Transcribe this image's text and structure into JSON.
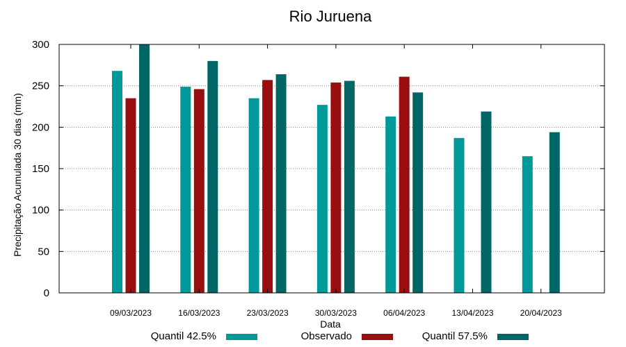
{
  "chart_data": {
    "type": "bar",
    "title": "Rio Juruena",
    "xlabel": "Data",
    "ylabel": "Precipitação Acumulada 30 dias (mm)",
    "ylim": [
      0,
      300
    ],
    "yticks": [
      0,
      50,
      100,
      150,
      200,
      250,
      300
    ],
    "grid": true,
    "legend_position": "bottom",
    "categories": [
      "09/03/2023",
      "16/03/2023",
      "23/03/2023",
      "30/03/2023",
      "06/04/2023",
      "13/04/2023",
      "20/04/2023"
    ],
    "series": [
      {
        "name": "Quantil 42.5%",
        "color": "#009999",
        "values": [
          268,
          249,
          235,
          227,
          213,
          187,
          165
        ]
      },
      {
        "name": "Observado",
        "color": "#990f0f",
        "values": [
          235,
          246,
          257,
          254,
          261,
          null,
          null
        ]
      },
      {
        "name": "Quantil 57.5%",
        "color": "#006666",
        "values": [
          300,
          280,
          264,
          256,
          242,
          219,
          194
        ]
      }
    ]
  }
}
